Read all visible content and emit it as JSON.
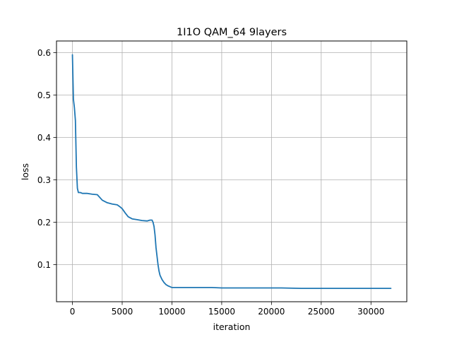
{
  "chart_data": {
    "type": "line",
    "title": "1I1O QAM_64 9layers",
    "xlabel": "iteration",
    "ylabel": "loss",
    "xlim": [
      -1600,
      33600
    ],
    "ylim": [
      0.0125,
      0.6275
    ],
    "xticks": [
      0,
      5000,
      10000,
      15000,
      20000,
      25000,
      30000
    ],
    "xtick_labels": [
      "0",
      "5000",
      "10000",
      "15000",
      "20000",
      "25000",
      "30000"
    ],
    "yticks": [
      0.1,
      0.2,
      0.3,
      0.4,
      0.5,
      0.6
    ],
    "ytick_labels": [
      "0.1",
      "0.2",
      "0.3",
      "0.4",
      "0.5",
      "0.6"
    ],
    "grid": true,
    "legend": "none",
    "line_color": "#1f77b4",
    "series": [
      {
        "x": [
          0,
          100,
          200,
          300,
          400,
          500,
          600,
          800,
          1000,
          1500,
          2000,
          2500,
          3000,
          3500,
          4000,
          4500,
          4800,
          5000,
          5300,
          5600,
          6000,
          6500,
          7000,
          7500,
          7800,
          8000,
          8100,
          8200,
          8300,
          8400,
          8500,
          8600,
          8700,
          8800,
          9000,
          9200,
          9400,
          9600,
          9800,
          10000,
          11000,
          12000,
          13000,
          14000,
          15000,
          17000,
          19000,
          21000,
          23000,
          25000,
          27000,
          29000,
          31000,
          32000
        ],
        "y": [
          0.595,
          0.49,
          0.47,
          0.44,
          0.33,
          0.28,
          0.27,
          0.27,
          0.268,
          0.268,
          0.266,
          0.265,
          0.252,
          0.246,
          0.243,
          0.241,
          0.236,
          0.232,
          0.222,
          0.213,
          0.208,
          0.206,
          0.204,
          0.203,
          0.205,
          0.205,
          0.2,
          0.19,
          0.17,
          0.14,
          0.12,
          0.1,
          0.085,
          0.075,
          0.065,
          0.058,
          0.053,
          0.05,
          0.048,
          0.046,
          0.046,
          0.046,
          0.046,
          0.046,
          0.045,
          0.045,
          0.045,
          0.045,
          0.044,
          0.044,
          0.044,
          0.044,
          0.044,
          0.044
        ]
      }
    ]
  }
}
